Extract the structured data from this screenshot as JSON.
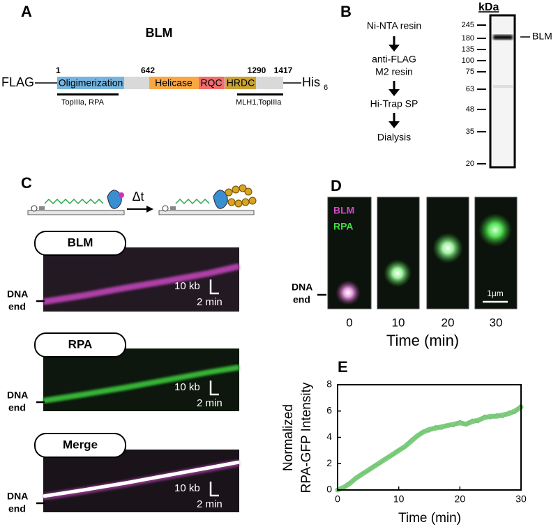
{
  "panel_labels": [
    "A",
    "B",
    "C",
    "D",
    "E"
  ],
  "panel_a": {
    "title": "BLM",
    "n_tag": "FLAG",
    "c_tag": "His",
    "c_tag_subscript": "6",
    "positions": [
      "1",
      "642",
      "1290",
      "1417"
    ],
    "domains": [
      "Oligimerization",
      "Helicase",
      "RQC",
      "HRDC"
    ],
    "interactions": [
      "TopIIIa, RPA",
      "MLH1,TopIIIa"
    ]
  },
  "panel_b": {
    "steps": [
      [
        "Ni-NTA resin"
      ],
      [
        "anti-FLAG",
        "M2 resin"
      ],
      [
        "Hi-Trap SP"
      ],
      [
        "Dialysis"
      ]
    ],
    "gel_unit": "kDa",
    "markers": [
      "245",
      "180",
      "135",
      "100",
      "75",
      "63",
      "48",
      "35",
      "20"
    ],
    "band_label": "BLM"
  },
  "panel_c": {
    "delta": "Δt",
    "kymographs": [
      "BLM",
      "RPA",
      "Merge"
    ],
    "dna_end": [
      "DNA",
      "end"
    ],
    "scale_length": "10 kb",
    "scale_time": "2 min"
  },
  "panel_d": {
    "channels": [
      "BLM",
      "RPA"
    ],
    "dna_end": [
      "DNA",
      "end"
    ],
    "scale": "1μm",
    "times": [
      "0",
      "10",
      "20",
      "30"
    ],
    "xlabel": "Time (min)"
  },
  "chart_data": {
    "type": "line",
    "xlabel": "Time (min)",
    "ylabel": [
      "Normalized",
      "RPA-GFP Intensity"
    ],
    "x": [
      0,
      1,
      2,
      3,
      4,
      5,
      6,
      7,
      8,
      9,
      10,
      11,
      12,
      13,
      14,
      15,
      16,
      17,
      18,
      19,
      20,
      21,
      22,
      23,
      24,
      25,
      26,
      27,
      28,
      29,
      30
    ],
    "series": [
      {
        "color": "#9a9a9a",
        "values": [
          0.1,
          0.1,
          0.6,
          0.8,
          1.3,
          1.4,
          1.9,
          2.0,
          2.5,
          2.6,
          3.1,
          3.2,
          3.9,
          4.0,
          4.5,
          4.4,
          4.9,
          4.6,
          5.0,
          4.8,
          5.3,
          4.9,
          5.4,
          5.1,
          5.7,
          5.4,
          5.8,
          5.5,
          6.0,
          5.8,
          6.6
        ]
      },
      {
        "color": "#70c870",
        "values": [
          0,
          0.2,
          0.5,
          0.9,
          1.2,
          1.5,
          1.8,
          2.1,
          2.4,
          2.7,
          3.0,
          3.3,
          3.7,
          4.1,
          4.4,
          4.6,
          4.7,
          4.8,
          4.9,
          5.0,
          5.1,
          5.0,
          5.2,
          5.3,
          5.5,
          5.6,
          5.6,
          5.7,
          5.8,
          6.0,
          6.3
        ]
      }
    ],
    "xlim": [
      0,
      30
    ],
    "ylim": [
      0,
      8
    ],
    "xticks": [
      0,
      10,
      20,
      30
    ],
    "yticks": [
      0,
      2,
      4,
      6,
      8
    ]
  }
}
